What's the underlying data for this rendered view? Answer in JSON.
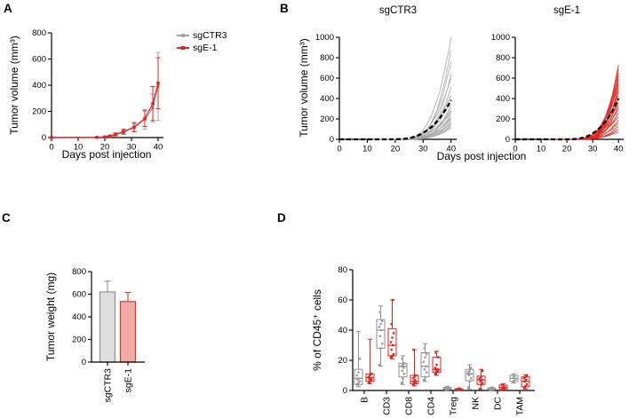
{
  "figure": {
    "background": "#ffffff",
    "panel_labels": {
      "a": "A",
      "b": "B",
      "c": "C",
      "d": "D"
    },
    "colors": {
      "gray_line": "#a6a6a6",
      "gray_dark": "#8f8f8f",
      "red": "#e2231c",
      "bar_gray_fill": "#dedede",
      "bar_gray_edge": "#8f8f8f",
      "bar_red_fill": "#f2aba4",
      "bar_red_edge": "#d43a31",
      "mean_line": "#000000",
      "axis": "#000000"
    }
  },
  "chart_data": [
    {
      "id": "A",
      "type": "line",
      "ylabel": "Tumor volume (mm³)",
      "xlabel": "Days post injection",
      "xlim": [
        0,
        42
      ],
      "ylim": [
        0,
        800
      ],
      "xticks": [
        0,
        10,
        20,
        30,
        40
      ],
      "yticks": [
        0,
        200,
        400,
        600,
        800
      ],
      "x": [
        0,
        17,
        20,
        22,
        24,
        27,
        31,
        35,
        38,
        40
      ],
      "series": [
        {
          "name": "sgCTR3",
          "color": "#a6a6a6",
          "values": [
            0,
            2,
            4,
            10,
            20,
            40,
            75,
            140,
            225,
            390
          ],
          "err": [
            0,
            1,
            2,
            4,
            8,
            15,
            30,
            75,
            105,
            260
          ]
        },
        {
          "name": "sgE-1",
          "color": "#e2231c",
          "values": [
            0,
            2,
            5,
            12,
            25,
            45,
            80,
            145,
            260,
            415
          ],
          "err": [
            0,
            1,
            2,
            5,
            10,
            18,
            35,
            60,
            130,
            195
          ]
        }
      ],
      "legend": [
        "sgCTR3",
        "sgE-1"
      ],
      "legend_position": "right-top"
    },
    {
      "id": "B1",
      "type": "spaghetti",
      "title": "sgCTR3",
      "ylabel": "Tumor volume (mm³)",
      "xlabel": "Days post injection",
      "xlim": [
        0,
        42
      ],
      "ylim": [
        0,
        1000
      ],
      "xticks": [
        0,
        10,
        20,
        30,
        40
      ],
      "yticks": [
        0,
        200,
        400,
        600,
        800,
        1000
      ],
      "line_color": "#a6a6a6",
      "curves": [
        [
          1000,
          22
        ],
        [
          880,
          24
        ],
        [
          760,
          23
        ],
        [
          640,
          25
        ],
        [
          600,
          21
        ],
        [
          510,
          24
        ],
        [
          430,
          20
        ],
        [
          390,
          22
        ],
        [
          340,
          25
        ],
        [
          300,
          21
        ],
        [
          280,
          23
        ],
        [
          260,
          19
        ],
        [
          240,
          24
        ],
        [
          220,
          22
        ],
        [
          200,
          20
        ],
        [
          185,
          23
        ],
        [
          170,
          25
        ],
        [
          155,
          21
        ],
        [
          140,
          24
        ],
        [
          125,
          22
        ],
        [
          110,
          23
        ]
      ],
      "mean": {
        "final": 385,
        "onset": 18,
        "style": "dashed",
        "color": "#000000"
      }
    },
    {
      "id": "B2",
      "type": "spaghetti",
      "title": "sgE-1",
      "ylabel": "Tumor volume (mm³)",
      "xlabel": "Days post injection",
      "xlim": [
        0,
        42
      ],
      "ylim": [
        0,
        1000
      ],
      "xticks": [
        0,
        10,
        20,
        30,
        40
      ],
      "yticks": [
        0,
        200,
        400,
        600,
        800,
        1000
      ],
      "line_color": "#e2231c",
      "curves": [
        [
          730,
          26
        ],
        [
          690,
          24
        ],
        [
          650,
          25
        ],
        [
          620,
          27
        ],
        [
          590,
          23
        ],
        [
          560,
          25
        ],
        [
          530,
          22
        ],
        [
          500,
          26
        ],
        [
          470,
          24
        ],
        [
          430,
          21
        ],
        [
          400,
          25
        ],
        [
          360,
          23
        ],
        [
          330,
          26
        ],
        [
          300,
          22
        ],
        [
          260,
          24
        ],
        [
          220,
          20
        ],
        [
          190,
          25
        ],
        [
          160,
          23
        ],
        [
          130,
          26
        ],
        [
          100,
          24
        ],
        [
          75,
          22
        ]
      ],
      "mean": {
        "final": 400,
        "onset": 19,
        "style": "dashed",
        "color": "#000000"
      }
    },
    {
      "id": "C",
      "type": "bar",
      "ylabel": "Tumor weight (mg)",
      "ylim": [
        0,
        800
      ],
      "yticks": [
        0,
        200,
        400,
        600,
        800
      ],
      "categories": [
        "sgCTR3",
        "sgE-1"
      ],
      "values": [
        620,
        535
      ],
      "errors": [
        95,
        80
      ],
      "bar_fills": [
        "#dedede",
        "#f2aba4"
      ],
      "bar_edges": [
        "#8f8f8f",
        "#d43a31"
      ]
    },
    {
      "id": "D",
      "type": "box",
      "ylabel": "% of CD45⁺ cells",
      "ylim": [
        0,
        80
      ],
      "yticks": [
        0,
        20,
        40,
        60,
        80
      ],
      "categories": [
        "B",
        "CD3",
        "CD8",
        "CD4",
        "Treg",
        "NK",
        "DC",
        "TAM"
      ],
      "groups": [
        {
          "name": "sgCTR3",
          "color": "#8f8f8f",
          "point_color": "#9c9c9c",
          "boxes": [
            {
              "lo": 2.5,
              "q1": 4,
              "med": 8,
              "q3": 14,
              "hi": 39,
              "points": [
                4,
                5,
                6,
                7,
                8,
                10,
                12,
                21
              ]
            },
            {
              "lo": 16,
              "q1": 28,
              "med": 40,
              "q3": 47,
              "hi": 56,
              "points": [
                17,
                28,
                31,
                36,
                40,
                42,
                44,
                46,
                52
              ]
            },
            {
              "lo": 4,
              "q1": 9,
              "med": 16,
              "q3": 18,
              "hi": 23,
              "points": [
                5,
                8,
                11,
                13,
                15,
                16,
                17,
                18,
                21
              ]
            },
            {
              "lo": 6,
              "q1": 9,
              "med": 16,
              "q3": 25,
              "hi": 31,
              "points": [
                7,
                9,
                12,
                14,
                16,
                19,
                22,
                24,
                28
              ]
            },
            {
              "lo": 0.2,
              "q1": 0.6,
              "med": 1.2,
              "q3": 2,
              "hi": 2.8,
              "points": [
                0.5,
                1,
                1.5,
                2,
                2.5
              ]
            },
            {
              "lo": 1,
              "q1": 6.5,
              "med": 11,
              "q3": 14,
              "hi": 17,
              "points": [
                2,
                6,
                8,
                10,
                11,
                12,
                13,
                15
              ]
            },
            {
              "lo": 0.2,
              "q1": 0.5,
              "med": 1,
              "q3": 1.6,
              "hi": 2.2,
              "points": [
                0.3,
                0.7,
                1,
                1.4,
                2
              ]
            },
            {
              "lo": 5,
              "q1": 6,
              "med": 8,
              "q3": 10,
              "hi": 11,
              "points": [
                5.5,
                6.5,
                7.5,
                8.5,
                9.5,
                10.5
              ]
            }
          ]
        },
        {
          "name": "sgE-1",
          "color": "#e2231c",
          "point_color": "#e2231c",
          "boxes": [
            {
              "lo": 4.5,
              "q1": 6,
              "med": 8.5,
              "q3": 11,
              "hi": 34,
              "points": [
                5,
                6,
                7,
                7.5,
                8,
                9,
                10,
                11
              ]
            },
            {
              "lo": 21,
              "q1": 23,
              "med": 30,
              "q3": 41,
              "hi": 60,
              "points": [
                22,
                23,
                24,
                27,
                30,
                32,
                35,
                38,
                44,
                60
              ]
            },
            {
              "lo": 3,
              "q1": 4.5,
              "med": 6,
              "q3": 10,
              "hi": 27,
              "points": [
                4,
                5,
                5.5,
                6,
                7,
                8,
                9,
                10,
                27
              ]
            },
            {
              "lo": 10,
              "q1": 12,
              "med": 14,
              "q3": 22,
              "hi": 26,
              "points": [
                11,
                12,
                13,
                13.5,
                14,
                15,
                17,
                22,
                25
              ]
            },
            {
              "lo": 0.1,
              "q1": 0.3,
              "med": 0.6,
              "q3": 1.1,
              "hi": 1.6,
              "points": [
                0.2,
                0.5,
                0.8,
                1,
                1.3
              ]
            },
            {
              "lo": 0.5,
              "q1": 4,
              "med": 7,
              "q3": 9.5,
              "hi": 14,
              "points": [
                1,
                4,
                5,
                6,
                7,
                8,
                9,
                13
              ]
            },
            {
              "lo": 0.4,
              "q1": 1,
              "med": 2,
              "q3": 3.5,
              "hi": 4.5,
              "points": [
                0.5,
                1,
                1.5,
                2,
                3,
                4
              ]
            },
            {
              "lo": 1,
              "q1": 2.5,
              "med": 6,
              "q3": 9,
              "hi": 10.5,
              "points": [
                1.5,
                3,
                4,
                6,
                7,
                8,
                9,
                10
              ]
            }
          ]
        }
      ]
    }
  ]
}
